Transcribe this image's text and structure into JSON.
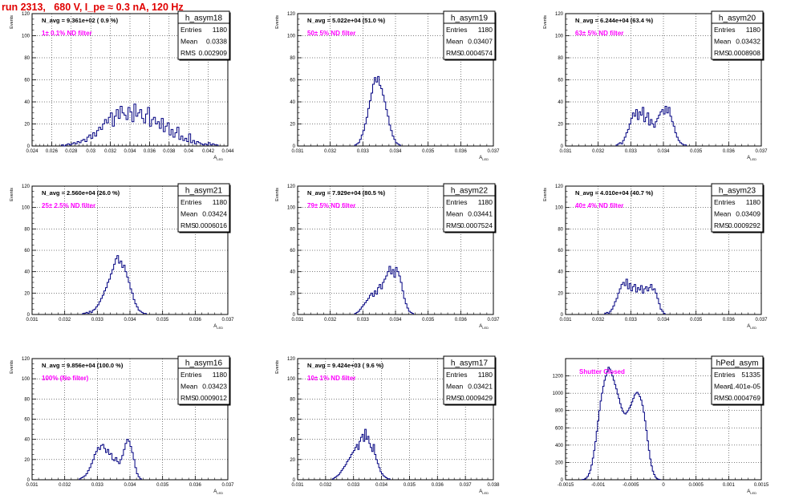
{
  "page_title": "run 2313,   680 V, I_pe ≈ 0.3 nA, 120 Hz",
  "colors": {
    "title": "#e00000",
    "annotation": "#ff00ff",
    "histogram": "#000080",
    "grid": "#000000"
  },
  "chart_data": [
    {
      "type": "histogram",
      "name": "h_asym18",
      "navg": "N_avg = 9.361e+02 ( 0.9 %)",
      "annotation": "1± 0.1% ND filter",
      "stats": {
        "entries": "1180",
        "mean": "0.0338",
        "rms": "0.002909"
      },
      "xlabel": "A_LED",
      "ylabel": "Events",
      "xlim": [
        0.024,
        0.044
      ],
      "ylim": [
        0,
        120
      ],
      "xticks": [
        "0.024",
        "0.026",
        "0.028",
        "0.03",
        "0.032",
        "0.034",
        "0.036",
        "0.038",
        "0.04",
        "0.042",
        "0.044"
      ],
      "yticks": [
        "0",
        "20",
        "40",
        "60",
        "80",
        "100",
        "120"
      ],
      "bins": {
        "start": 0.027,
        "width": 0.0002,
        "values": [
          1,
          0,
          1,
          2,
          1,
          2,
          3,
          2,
          4,
          3,
          5,
          6,
          4,
          8,
          10,
          7,
          12,
          9,
          14,
          17,
          15,
          20,
          24,
          21,
          26,
          30,
          18,
          27,
          33,
          25,
          36,
          30,
          28,
          24,
          35,
          31,
          22,
          38,
          27,
          30,
          33,
          25,
          21,
          29,
          35,
          18,
          24,
          26,
          20,
          22,
          16,
          25,
          13,
          18,
          21,
          10,
          15,
          8,
          12,
          17,
          6,
          9,
          5,
          7,
          4,
          11,
          3,
          5,
          2,
          4,
          3,
          2,
          1,
          2,
          1,
          3,
          1,
          2,
          1,
          1
        ]
      }
    },
    {
      "type": "histogram",
      "name": "h_asym19",
      "navg": "N_avg = 5.022e+04 (51.0 %)",
      "annotation": "50± 5% ND filter",
      "stats": {
        "entries": "1180",
        "mean": "0.03407",
        "rms": "0.0004574"
      },
      "xlabel": "A_LED",
      "ylabel": "Events",
      "xlim": [
        0.031,
        0.037
      ],
      "ylim": [
        0,
        120
      ],
      "xticks": [
        "0.031",
        "0.032",
        "0.033",
        "0.034",
        "0.035",
        "0.036",
        "0.037"
      ],
      "yticks": [
        "0",
        "20",
        "40",
        "60",
        "80",
        "100",
        "120"
      ],
      "bins": {
        "start": 0.03275,
        "width": 5e-05,
        "values": [
          1,
          2,
          3,
          6,
          10,
          14,
          20,
          26,
          34,
          41,
          48,
          56,
          62,
          58,
          63,
          55,
          52,
          46,
          40,
          33,
          27,
          19,
          14,
          9,
          6,
          3,
          2,
          1
        ]
      }
    },
    {
      "type": "histogram",
      "name": "h_asym20",
      "navg": "N_avg = 6.244e+04 (63.4 %)",
      "annotation": "63± 5% ND filter",
      "stats": {
        "entries": "1180",
        "mean": "0.03432",
        "rms": "0.0008908"
      },
      "xlabel": "A_LED",
      "ylabel": "Events",
      "xlim": [
        0.031,
        0.037
      ],
      "ylim": [
        0,
        120
      ],
      "xticks": [
        "0.031",
        "0.032",
        "0.033",
        "0.034",
        "0.035",
        "0.036",
        "0.037"
      ],
      "yticks": [
        "0",
        "20",
        "40",
        "60",
        "80",
        "100",
        "120"
      ],
      "bins": {
        "start": 0.03255,
        "width": 5e-05,
        "values": [
          1,
          2,
          3,
          2,
          5,
          8,
          12,
          15,
          20,
          25,
          30,
          27,
          33,
          24,
          31,
          28,
          35,
          22,
          26,
          30,
          19,
          24,
          20,
          17,
          22,
          25,
          28,
          31,
          33,
          29,
          36,
          30,
          35,
          27,
          22,
          18,
          12,
          8,
          5,
          3,
          2,
          1,
          1
        ]
      }
    },
    {
      "type": "histogram",
      "name": "h_asym21",
      "navg": "N_avg = 2.560e+04 (26.0 %)",
      "annotation": "25± 2.5% ND filter",
      "stats": {
        "entries": "1180",
        "mean": "0.03424",
        "rms": "0.0006016"
      },
      "xlabel": "A_LED",
      "ylabel": "Events",
      "xlim": [
        0.031,
        0.037
      ],
      "ylim": [
        0,
        120
      ],
      "xticks": [
        "0.031",
        "0.032",
        "0.033",
        "0.034",
        "0.035",
        "0.036",
        "0.037"
      ],
      "yticks": [
        "0",
        "20",
        "40",
        "60",
        "80",
        "100",
        "120"
      ],
      "bins": {
        "start": 0.03255,
        "width": 5e-05,
        "values": [
          1,
          1,
          2,
          1,
          3,
          2,
          4,
          5,
          7,
          9,
          12,
          15,
          18,
          22,
          25,
          30,
          33,
          38,
          42,
          47,
          52,
          55,
          48,
          50,
          44,
          46,
          40,
          35,
          30,
          24,
          20,
          14,
          10,
          7,
          4,
          3,
          2,
          1,
          1
        ]
      }
    },
    {
      "type": "histogram",
      "name": "h_asym22",
      "navg": "N_avg = 7.929e+04 (80.5 %)",
      "annotation": "79± 5% ND filter",
      "stats": {
        "entries": "1180",
        "mean": "0.03441",
        "rms": "0.0007524"
      },
      "xlabel": "A_LED",
      "ylabel": "Events",
      "xlim": [
        0.031,
        0.037
      ],
      "ylim": [
        0,
        120
      ],
      "xticks": [
        "0.031",
        "0.032",
        "0.033",
        "0.034",
        "0.035",
        "0.036",
        "0.037"
      ],
      "yticks": [
        "0",
        "20",
        "40",
        "60",
        "80",
        "100",
        "120"
      ],
      "bins": {
        "start": 0.03275,
        "width": 5e-05,
        "values": [
          1,
          2,
          3,
          5,
          7,
          9,
          11,
          13,
          15,
          18,
          20,
          17,
          22,
          19,
          25,
          28,
          24,
          30,
          33,
          36,
          40,
          45,
          38,
          42,
          35,
          44,
          40,
          36,
          30,
          22,
          15,
          10,
          6,
          3,
          2,
          1
        ]
      }
    },
    {
      "type": "histogram",
      "name": "h_asym23",
      "navg": "N_avg = 4.010e+04 (40.7 %)",
      "annotation": "40± 4% ND filter",
      "stats": {
        "entries": "1180",
        "mean": "0.03409",
        "rms": "0.0009292"
      },
      "xlabel": "A_LED",
      "ylabel": "Events",
      "xlim": [
        0.031,
        0.037
      ],
      "ylim": [
        0,
        120
      ],
      "xticks": [
        "0.031",
        "0.032",
        "0.033",
        "0.034",
        "0.035",
        "0.036",
        "0.037"
      ],
      "yticks": [
        "0",
        "20",
        "40",
        "60",
        "80",
        "100",
        "120"
      ],
      "bins": {
        "start": 0.0322,
        "width": 5e-05,
        "values": [
          1,
          2,
          1,
          3,
          5,
          8,
          12,
          15,
          20,
          24,
          28,
          30,
          27,
          33,
          24,
          29,
          22,
          26,
          28,
          21,
          25,
          23,
          27,
          20,
          24,
          26,
          22,
          25,
          28,
          23,
          24,
          20,
          15,
          10,
          5,
          3,
          1
        ]
      }
    },
    {
      "type": "histogram",
      "name": "h_asym16",
      "navg": "N_avg = 9.856e+04 (100.0 %)",
      "annotation": "100% (No filter)",
      "stats": {
        "entries": "1180",
        "mean": "0.03423",
        "rms": "0.0009012"
      },
      "xlabel": "A_LED",
      "ylabel": "Events",
      "xlim": [
        0.031,
        0.037
      ],
      "ylim": [
        0,
        120
      ],
      "xticks": [
        "0.031",
        "0.032",
        "0.033",
        "0.034",
        "0.035",
        "0.036",
        "0.037"
      ],
      "yticks": [
        "0",
        "20",
        "40",
        "60",
        "80",
        "100",
        "120"
      ],
      "bins": {
        "start": 0.03245,
        "width": 5e-05,
        "values": [
          1,
          2,
          3,
          4,
          6,
          9,
          12,
          16,
          20,
          25,
          28,
          32,
          30,
          34,
          35,
          31,
          27,
          30,
          25,
          26,
          20,
          19,
          22,
          18,
          16,
          20,
          24,
          30,
          36,
          40,
          38,
          33,
          27,
          20,
          12,
          6,
          3,
          1
        ]
      }
    },
    {
      "type": "histogram",
      "name": "h_asym17",
      "navg": "N_avg = 9.424e+03 ( 9.6 %)",
      "annotation": "10± 1% ND filter",
      "stats": {
        "entries": "1180",
        "mean": "0.03421",
        "rms": "0.0009429"
      },
      "xlabel": "A_LED",
      "ylabel": "Events",
      "xlim": [
        0.031,
        0.038
      ],
      "ylim": [
        0,
        120
      ],
      "xticks": [
        "0.031",
        "0.032",
        "0.033",
        "0.034",
        "0.035",
        "0.036",
        "0.037",
        "0.038"
      ],
      "yticks": [
        "0",
        "20",
        "40",
        "60",
        "80",
        "100",
        "120"
      ],
      "bins": {
        "start": 0.03225,
        "width": 5e-05,
        "values": [
          1,
          2,
          3,
          4,
          5,
          7,
          9,
          11,
          13,
          15,
          18,
          20,
          22,
          25,
          27,
          29,
          32,
          35,
          30,
          38,
          42,
          45,
          38,
          50,
          40,
          43,
          36,
          32,
          28,
          35,
          25,
          20,
          16,
          12,
          8,
          6,
          4,
          3,
          2,
          1,
          1
        ]
      }
    },
    {
      "type": "histogram",
      "name": "hPed_asym",
      "navg": "",
      "annotation": "Shutter Closed",
      "stats": {
        "entries": "51335",
        "mean": "-1.401e-05",
        "rms": "0.0004769"
      },
      "xlabel": "A_LED",
      "ylabel": "",
      "xlim": [
        -0.0015,
        0.0015
      ],
      "ylim": [
        0,
        1400
      ],
      "xticks": [
        "-0.0015",
        "-0.001",
        "-0.0005",
        "0",
        "0.0005",
        "0.001",
        "0.0015"
      ],
      "yticks": [
        "0",
        "200",
        "400",
        "600",
        "800",
        "1000",
        "1200"
      ],
      "bins": {
        "start": -0.00125,
        "width": 2e-05,
        "values": [
          2,
          5,
          10,
          20,
          40,
          70,
          110,
          170,
          250,
          340,
          440,
          560,
          680,
          800,
          910,
          1000,
          1080,
          1150,
          1200,
          1250,
          1300,
          1280,
          1240,
          1200,
          1150,
          1100,
          1050,
          990,
          940,
          880,
          830,
          790,
          770,
          760,
          780,
          800,
          830,
          860,
          900,
          940,
          980,
          1000,
          1010,
          990,
          960,
          920,
          860,
          780,
          680,
          570,
          450,
          340,
          240,
          160,
          100,
          60,
          30,
          15,
          7,
          3
        ]
      }
    }
  ]
}
